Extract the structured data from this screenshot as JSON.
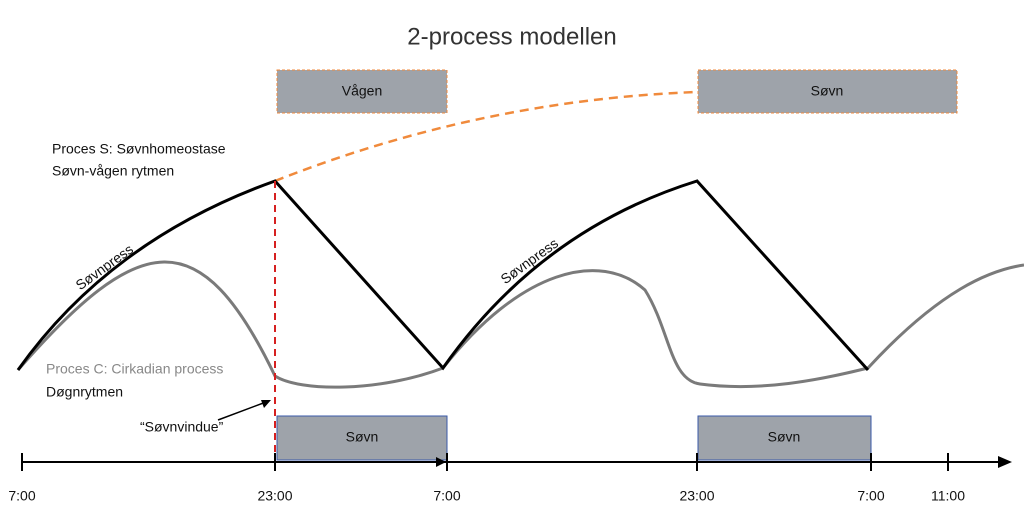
{
  "header": {
    "title": "2-process modellen"
  },
  "top_boxes": [
    {
      "label": "Vågen"
    },
    {
      "label": "Søvn"
    }
  ],
  "process_s": {
    "title": "Proces S: Søvnhomeostase",
    "subtitle": "Søvn-vågen rytmen"
  },
  "process_c": {
    "title": "Proces C: Cirkadian process",
    "subtitle": "Døgnrytmen"
  },
  "curve_labels": [
    "Søvnpress",
    "Søvnpress"
  ],
  "window_label": "“Søvnvindue”",
  "bottom_boxes": [
    {
      "label": "Søvn"
    },
    {
      "label": "Søvn"
    }
  ],
  "time_labels": [
    "7:00",
    "23:00",
    "7:00",
    "23:00",
    "7:00",
    "11:00"
  ]
}
